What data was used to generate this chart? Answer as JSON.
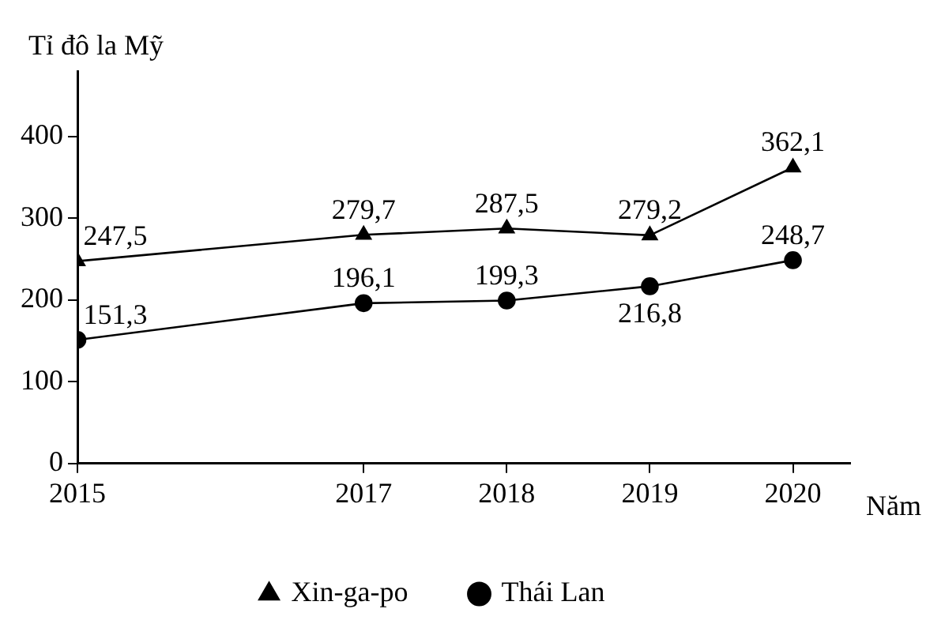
{
  "chart_data": {
    "type": "line",
    "ylabel": "Tỉ đô la Mỹ",
    "xlabel": "Năm",
    "x": [
      2015,
      2017,
      2018,
      2019,
      2020
    ],
    "xlim": [
      2015,
      2020.4
    ],
    "xticks": [
      2015,
      2017,
      2018,
      2019,
      2020
    ],
    "ylim": [
      0,
      480
    ],
    "yticks": [
      0,
      100,
      200,
      300,
      400
    ],
    "series": [
      {
        "name": "Xin-ga-po",
        "color": "#000000",
        "marker": "triangle",
        "values": [
          247.5,
          279.7,
          287.5,
          279.2,
          362.1
        ],
        "value_labels": [
          "247,5",
          "279,7",
          "287,5",
          "279,2",
          "362,1"
        ]
      },
      {
        "name": "Thái Lan",
        "color": "#000000",
        "marker": "circle",
        "values": [
          151.3,
          196.1,
          199.3,
          216.8,
          248.7
        ],
        "value_labels": [
          "151,3",
          "196,1",
          "199,3",
          "216,8",
          "248,7"
        ]
      }
    ],
    "legend": "bottom",
    "line_style": "solid"
  }
}
